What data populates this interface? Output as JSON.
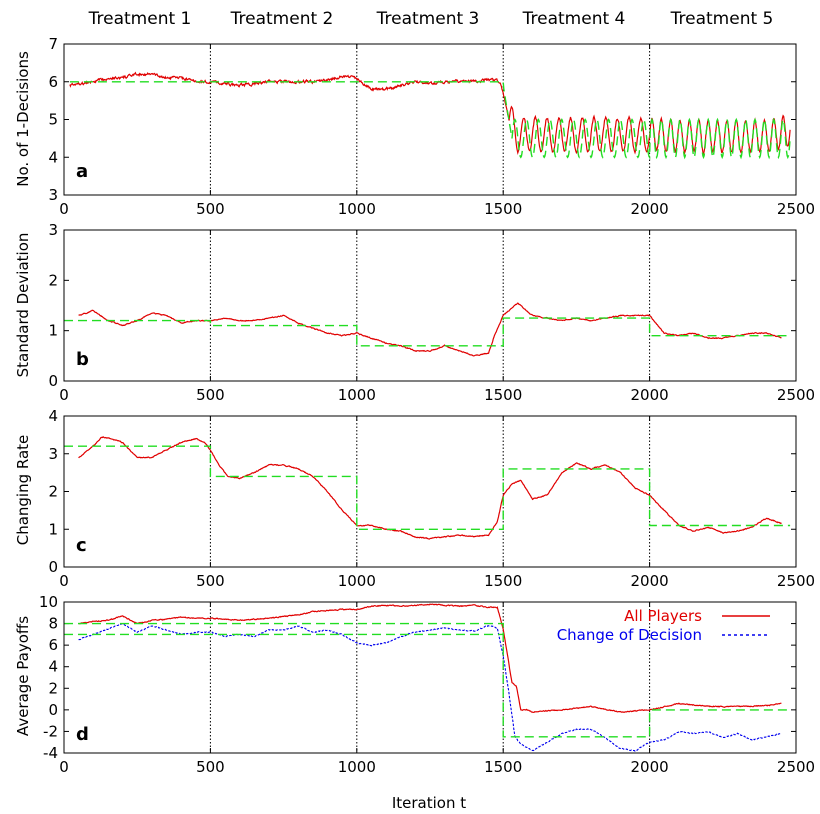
{
  "headers": [
    "Treatment 1",
    "Treatment 2",
    "Treatment 3",
    "Treatment 4",
    "Treatment 5"
  ],
  "colors": {
    "series": "#e00000",
    "reference": "#22dd22",
    "change": "#0000ee",
    "grid": "#000000"
  },
  "chart_data": [
    {
      "type": "line",
      "panel": "a",
      "ylabel": "No. of 1-Decisions",
      "xlim": [
        0,
        2500
      ],
      "ylim": [
        3,
        7
      ],
      "xticks": [
        0,
        500,
        1000,
        1500,
        2000,
        2500
      ],
      "yticks": [
        3,
        4,
        5,
        6,
        7
      ],
      "boundaries": [
        500,
        1000,
        1500,
        2000
      ],
      "series": [
        {
          "role": "measured",
          "oscillation": [
            {
              "from": 1520,
              "to": 2000,
              "period": 40,
              "amplitude": 0.45
            },
            {
              "from": 2000,
              "to": 2480,
              "period": 32,
              "amplitude": 0.42
            }
          ],
          "x": [
            20,
            60,
            100,
            150,
            200,
            250,
            300,
            350,
            400,
            450,
            500,
            550,
            600,
            650,
            700,
            750,
            800,
            850,
            900,
            950,
            1000,
            1050,
            1100,
            1150,
            1200,
            1250,
            1300,
            1350,
            1400,
            1450,
            1490,
            1505,
            1520,
            1550,
            1600,
            1700,
            1800,
            1900,
            2000,
            2100,
            2200,
            2300,
            2400,
            2480
          ],
          "y": [
            5.9,
            5.95,
            6.0,
            6.1,
            6.1,
            6.2,
            6.2,
            6.1,
            6.1,
            6.0,
            6.0,
            5.95,
            5.9,
            5.95,
            6.0,
            6.0,
            6.0,
            6.0,
            6.05,
            6.15,
            6.1,
            5.8,
            5.8,
            5.9,
            6.0,
            5.95,
            6.0,
            6.0,
            6.0,
            6.05,
            6.0,
            5.5,
            5.0,
            4.6,
            4.6,
            4.6,
            4.6,
            4.6,
            4.6,
            4.55,
            4.55,
            4.55,
            4.55,
            4.7
          ]
        },
        {
          "role": "reference",
          "oscillation": [
            {
              "from": 1530,
              "to": 2000,
              "period": 40,
              "amplitude": 0.5
            },
            {
              "from": 2000,
              "to": 2480,
              "period": 32,
              "amplitude": 0.5
            }
          ],
          "x": [
            20,
            1500,
            1500,
            1530,
            2480
          ],
          "y": [
            6,
            6,
            5.9,
            4.5,
            4.5
          ]
        }
      ]
    },
    {
      "type": "line",
      "panel": "b",
      "ylabel": "Standard Deviation",
      "xlim": [
        0,
        2500
      ],
      "ylim": [
        0,
        3
      ],
      "xticks": [
        0,
        500,
        1000,
        1500,
        2000,
        2500
      ],
      "yticks": [
        0,
        1,
        2,
        3
      ],
      "boundaries": [
        500,
        1000,
        1500,
        2000
      ],
      "series": [
        {
          "role": "measured",
          "x": [
            50,
            100,
            150,
            200,
            250,
            300,
            350,
            400,
            450,
            500,
            550,
            600,
            650,
            700,
            750,
            800,
            850,
            900,
            950,
            1000,
            1050,
            1100,
            1150,
            1200,
            1250,
            1300,
            1350,
            1400,
            1450,
            1470,
            1500,
            1550,
            1600,
            1650,
            1700,
            1750,
            1800,
            1850,
            1900,
            1950,
            2000,
            2050,
            2100,
            2150,
            2200,
            2250,
            2300,
            2350,
            2400,
            2450
          ],
          "y": [
            1.3,
            1.4,
            1.2,
            1.1,
            1.2,
            1.35,
            1.3,
            1.15,
            1.2,
            1.2,
            1.25,
            1.2,
            1.2,
            1.25,
            1.3,
            1.15,
            1.05,
            0.95,
            0.9,
            0.95,
            0.85,
            0.75,
            0.7,
            0.6,
            0.6,
            0.7,
            0.6,
            0.5,
            0.55,
            0.9,
            1.3,
            1.55,
            1.3,
            1.25,
            1.2,
            1.25,
            1.2,
            1.25,
            1.3,
            1.3,
            1.3,
            0.95,
            0.9,
            0.95,
            0.85,
            0.85,
            0.9,
            0.95,
            0.95,
            0.85
          ]
        },
        {
          "role": "reference",
          "x": [
            0,
            500,
            500,
            1000,
            1000,
            1500,
            1500,
            2000,
            2000,
            2480
          ],
          "y": [
            1.2,
            1.2,
            1.1,
            1.1,
            0.7,
            0.7,
            1.25,
            1.25,
            0.9,
            0.9
          ]
        }
      ]
    },
    {
      "type": "line",
      "panel": "c",
      "ylabel": "Changing Rate",
      "xlim": [
        0,
        2500
      ],
      "ylim": [
        0,
        4
      ],
      "xticks": [
        0,
        500,
        1000,
        1500,
        2000,
        2500
      ],
      "yticks": [
        0,
        1,
        2,
        3,
        4
      ],
      "boundaries": [
        500,
        1000,
        1500,
        2000
      ],
      "series": [
        {
          "role": "measured",
          "x": [
            50,
            100,
            130,
            160,
            200,
            250,
            300,
            350,
            400,
            450,
            480,
            500,
            530,
            560,
            600,
            650,
            700,
            750,
            800,
            850,
            900,
            950,
            1000,
            1050,
            1100,
            1150,
            1200,
            1250,
            1300,
            1350,
            1400,
            1450,
            1480,
            1500,
            1530,
            1560,
            1600,
            1650,
            1700,
            1750,
            1800,
            1850,
            1900,
            1950,
            2000,
            2050,
            2100,
            2150,
            2200,
            2250,
            2300,
            2350,
            2400,
            2450
          ],
          "y": [
            2.9,
            3.2,
            3.45,
            3.4,
            3.3,
            2.9,
            2.9,
            3.1,
            3.3,
            3.4,
            3.3,
            3.1,
            2.7,
            2.4,
            2.35,
            2.5,
            2.7,
            2.7,
            2.6,
            2.4,
            2.0,
            1.5,
            1.1,
            1.1,
            1.0,
            0.95,
            0.8,
            0.75,
            0.8,
            0.85,
            0.8,
            0.85,
            1.2,
            1.9,
            2.2,
            2.3,
            1.8,
            1.9,
            2.5,
            2.75,
            2.6,
            2.7,
            2.5,
            2.1,
            1.9,
            1.5,
            1.1,
            0.95,
            1.05,
            0.9,
            0.95,
            1.05,
            1.3,
            1.15
          ]
        },
        {
          "role": "reference",
          "x": [
            0,
            500,
            500,
            1000,
            1000,
            1500,
            1500,
            2000,
            2000,
            2480
          ],
          "y": [
            3.2,
            3.2,
            2.4,
            2.4,
            1.0,
            1.0,
            2.6,
            2.6,
            1.1,
            1.1
          ]
        }
      ]
    },
    {
      "type": "line",
      "panel": "d",
      "ylabel": "Average Payoffs",
      "xlabel": "Iteration t",
      "xlim": [
        0,
        2500
      ],
      "ylim": [
        -4,
        10
      ],
      "xticks": [
        0,
        500,
        1000,
        1500,
        2000,
        2500
      ],
      "yticks": [
        -4,
        -2,
        0,
        2,
        4,
        6,
        8,
        10
      ],
      "boundaries": [
        500,
        1000,
        1500,
        2000
      ],
      "legend": "top-right",
      "series": [
        {
          "role": "all",
          "name": "All Players",
          "x": [
            50,
            100,
            150,
            200,
            250,
            300,
            350,
            400,
            450,
            500,
            600,
            700,
            800,
            850,
            900,
            950,
            1000,
            1050,
            1100,
            1150,
            1200,
            1250,
            1300,
            1350,
            1400,
            1450,
            1480,
            1500,
            1515,
            1530,
            1545,
            1560,
            1580,
            1600,
            1700,
            1800,
            1900,
            2000,
            2050,
            2100,
            2200,
            2300,
            2400,
            2450
          ],
          "y": [
            8,
            8.2,
            8.3,
            8.7,
            8,
            8.3,
            8.4,
            8.6,
            8.5,
            8.5,
            8.3,
            8.5,
            8.8,
            9.1,
            9.2,
            9.3,
            9.3,
            9.6,
            9.7,
            9.6,
            9.7,
            9.8,
            9.7,
            9.6,
            9.7,
            9.5,
            9.5,
            7.5,
            5,
            2.5,
            2.2,
            0,
            0,
            -0.2,
            0,
            0.3,
            -0.2,
            0,
            0.3,
            0.6,
            0.3,
            0.3,
            0.4,
            0.6
          ]
        },
        {
          "role": "change",
          "name": "Change of Decision",
          "x": [
            50,
            100,
            150,
            200,
            250,
            300,
            350,
            400,
            450,
            500,
            550,
            600,
            650,
            700,
            750,
            800,
            850,
            900,
            950,
            1000,
            1050,
            1100,
            1150,
            1200,
            1250,
            1300,
            1350,
            1400,
            1450,
            1480,
            1500,
            1520,
            1540,
            1560,
            1580,
            1600,
            1650,
            1700,
            1750,
            1800,
            1850,
            1900,
            1950,
            2000,
            2050,
            2100,
            2150,
            2200,
            2250,
            2300,
            2350,
            2400,
            2450
          ],
          "y": [
            6.5,
            7,
            7.5,
            8,
            7.2,
            7.8,
            7.4,
            7.0,
            7.2,
            7.2,
            6.8,
            7.0,
            6.8,
            7.4,
            7.4,
            7.8,
            7.2,
            7.4,
            7.0,
            6.2,
            6.0,
            6.2,
            6.8,
            7.2,
            7.4,
            7.6,
            7.4,
            7.3,
            7.8,
            7.6,
            5.0,
            1.5,
            -2.5,
            -3.2,
            -3.5,
            -3.8,
            -3.0,
            -2.2,
            -1.8,
            -1.8,
            -2.6,
            -3.6,
            -3.8,
            -3.0,
            -2.8,
            -2.0,
            -2.2,
            -2.0,
            -2.6,
            -2.2,
            -2.8,
            -2.5,
            -2.2
          ]
        },
        {
          "role": "reference",
          "x": [
            0,
            1500,
            1500,
            2000,
            2000,
            2480
          ],
          "y": [
            8,
            8,
            -2.5,
            -2.5,
            0,
            0
          ]
        },
        {
          "role": "reference2",
          "x": [
            0,
            1500
          ],
          "y": [
            7,
            7
          ]
        }
      ]
    }
  ]
}
